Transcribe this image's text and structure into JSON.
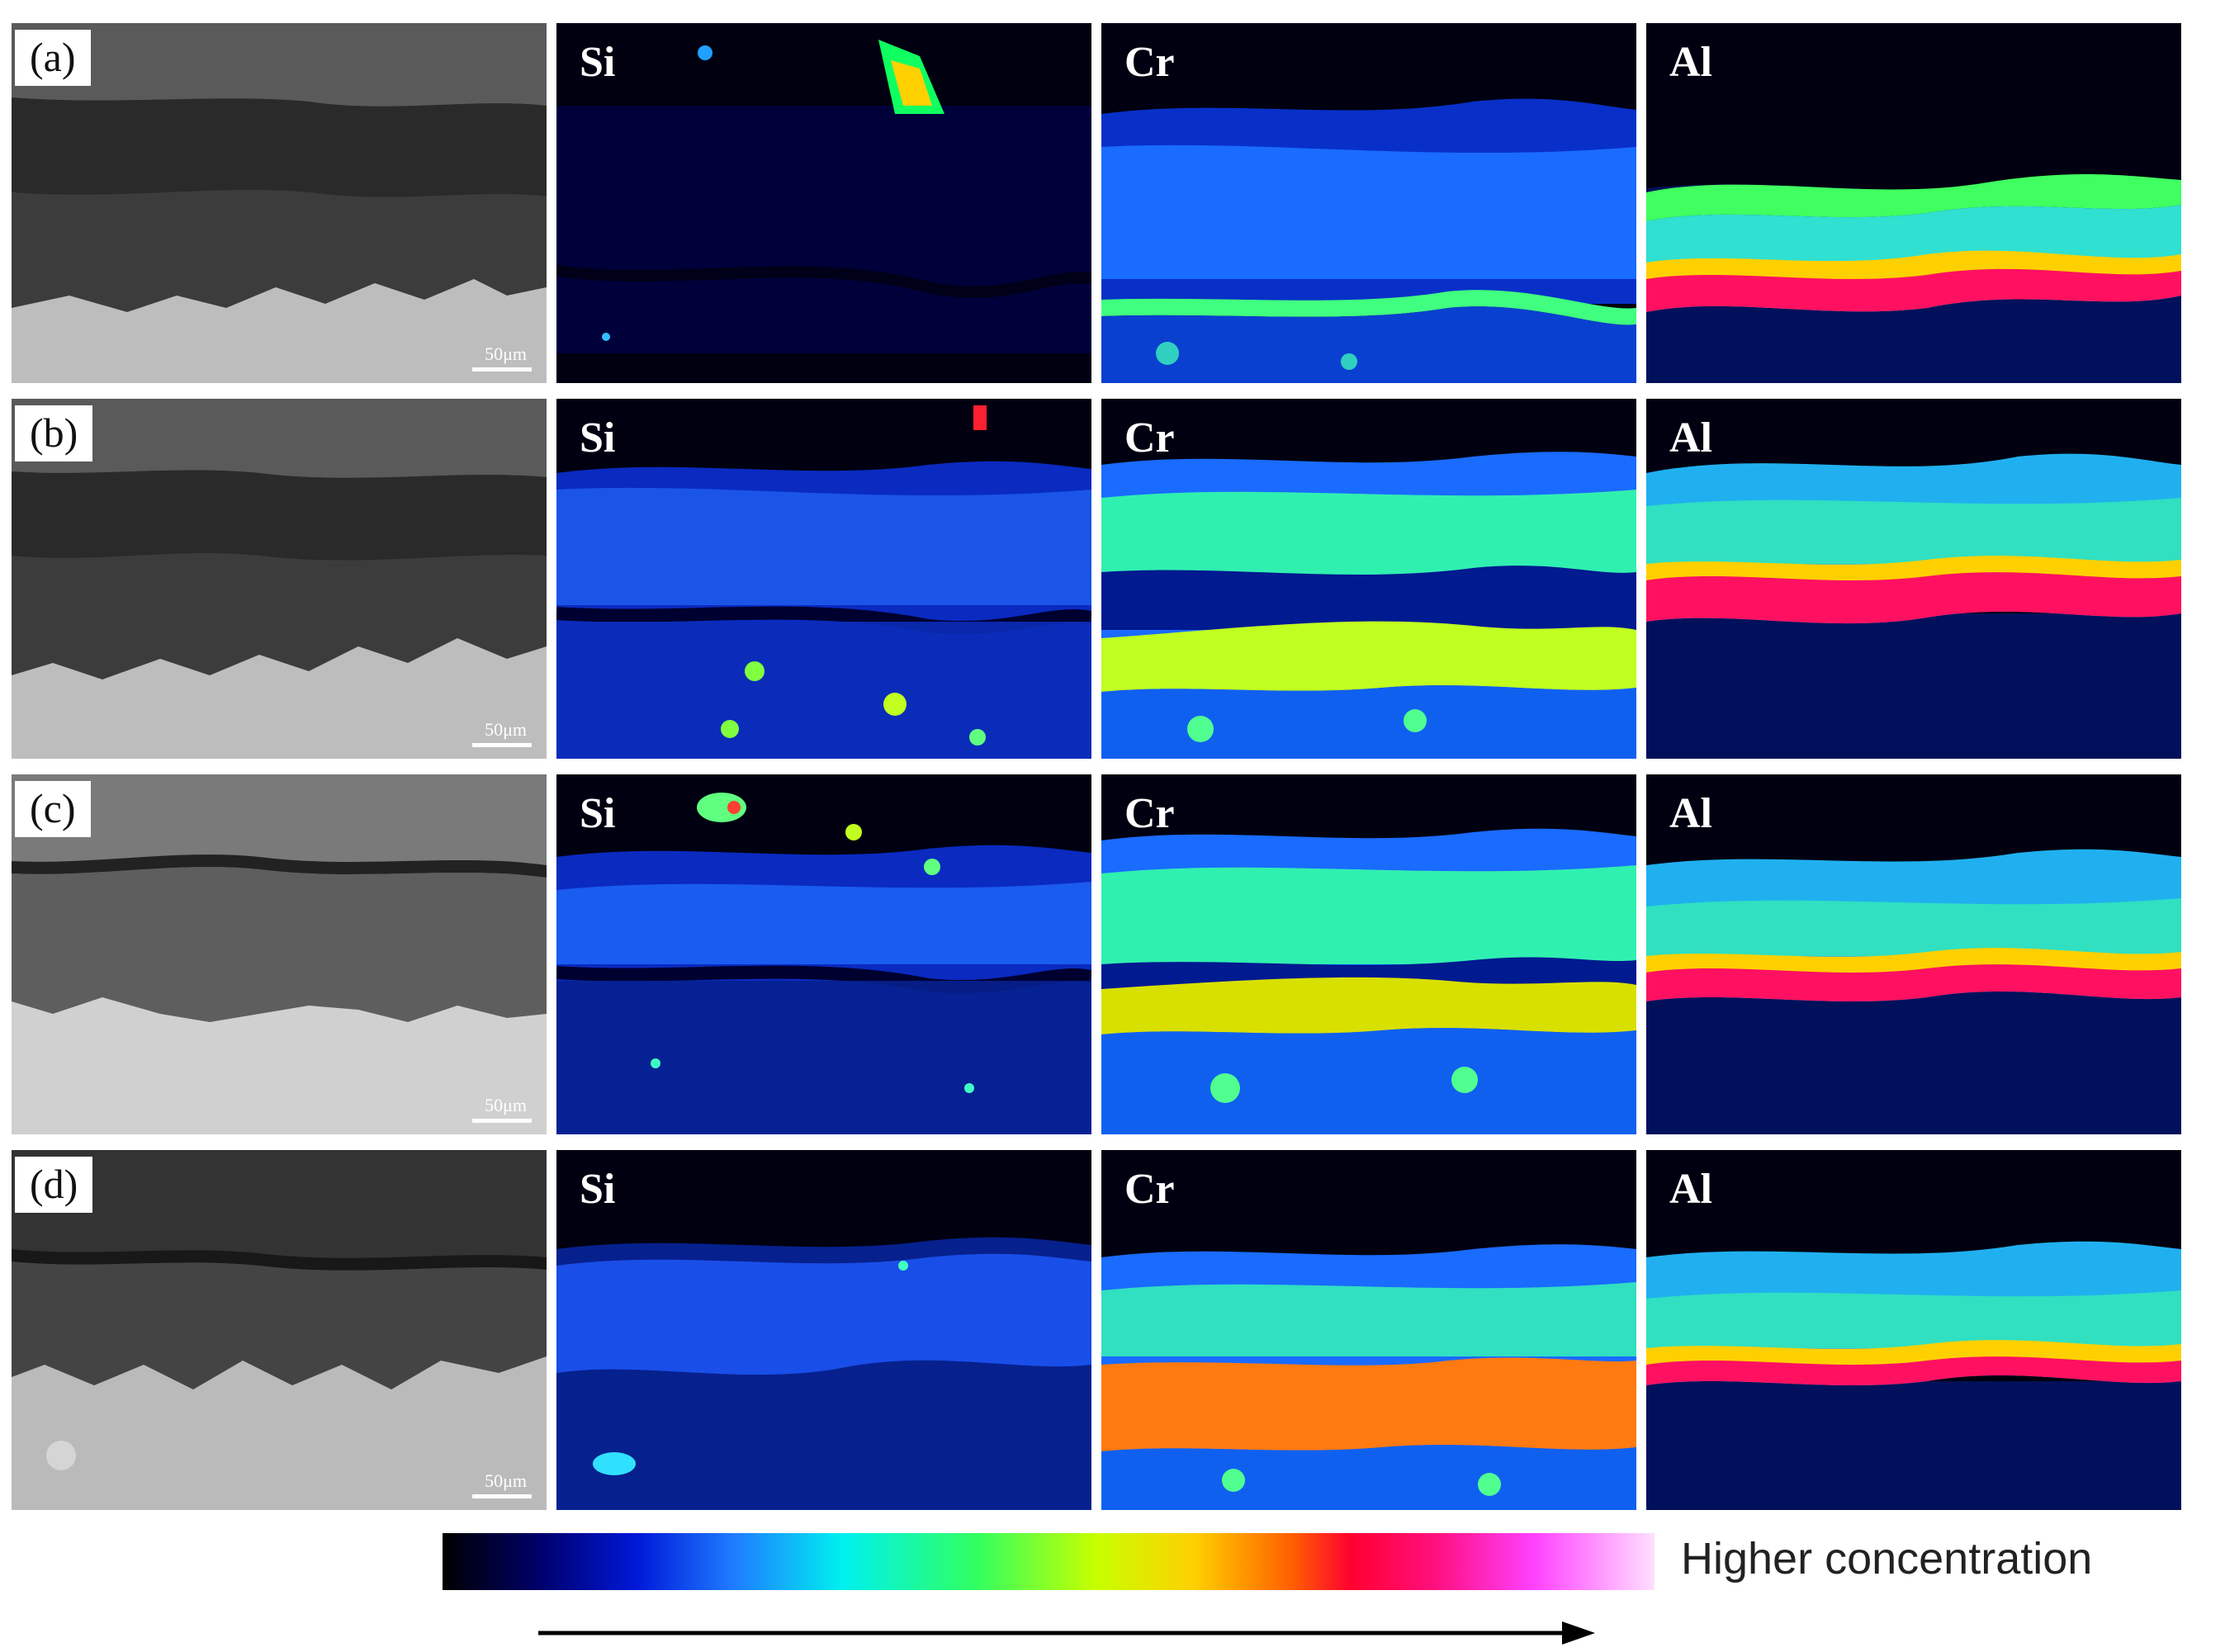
{
  "panels": [
    {
      "label": "(a)",
      "scale": "50μm",
      "maps": [
        "Si",
        "Cr",
        "Al"
      ]
    },
    {
      "label": "(b)",
      "scale": "50μm",
      "maps": [
        "Si",
        "Cr",
        "Al"
      ]
    },
    {
      "label": "(c)",
      "scale": "50μm",
      "maps": [
        "Si",
        "Cr",
        "Al"
      ]
    },
    {
      "label": "(d)",
      "scale": "50μm",
      "maps": [
        "Si",
        "Cr",
        "Al"
      ]
    }
  ],
  "colorbar": {
    "label": "Higher concentration"
  },
  "colors": {
    "background": "#ffffff",
    "map_background": "#000016"
  }
}
